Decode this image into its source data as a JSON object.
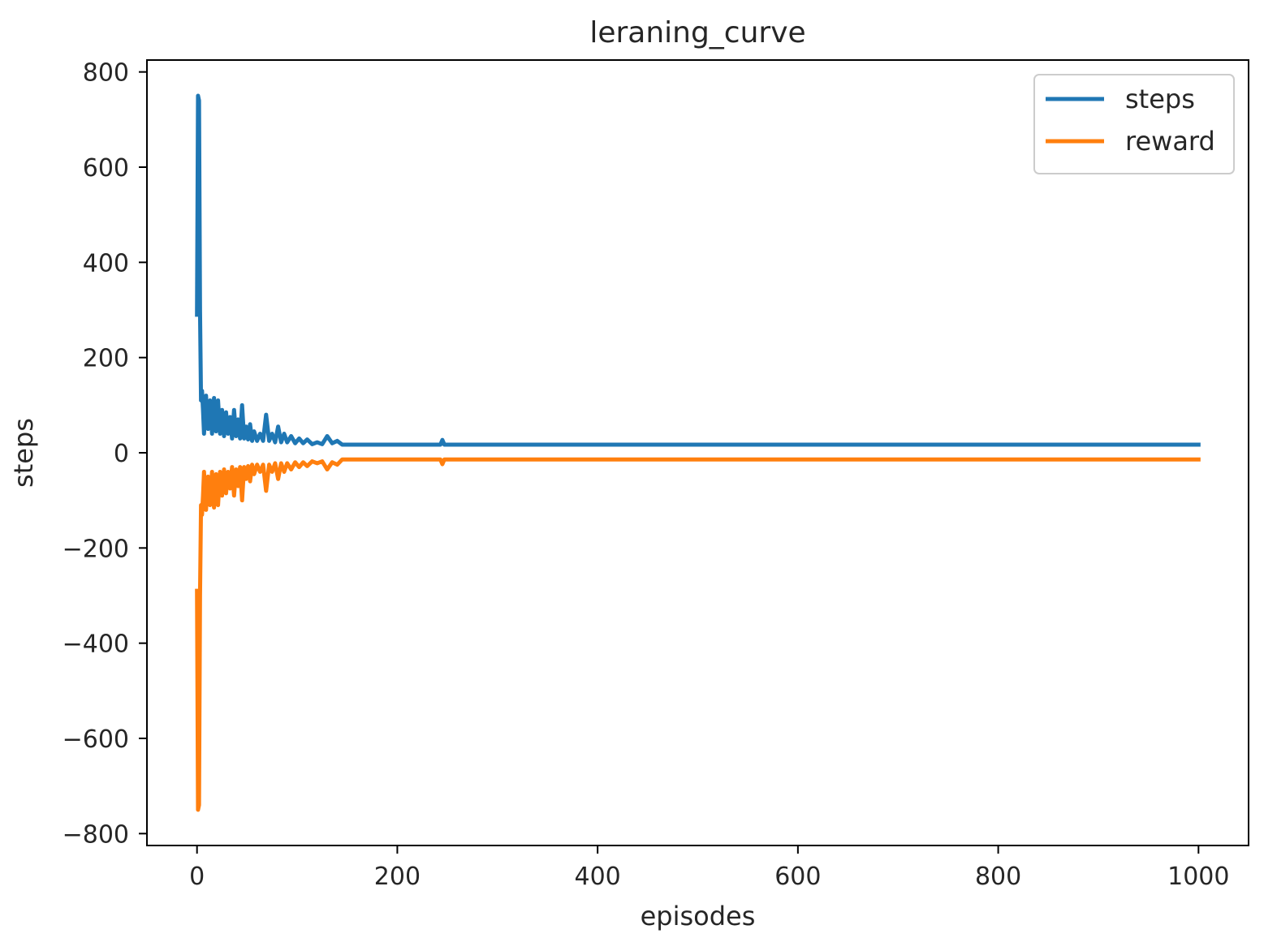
{
  "chart_data": {
    "type": "line",
    "title": "leraning_curve",
    "xlabel": "episodes",
    "ylabel": "steps",
    "xlim": [
      -50,
      1050
    ],
    "ylim": [
      -825,
      825
    ],
    "x_ticks": [
      0,
      200,
      400,
      600,
      800,
      1000
    ],
    "y_ticks": [
      800,
      600,
      400,
      200,
      0,
      -200,
      -400,
      -600,
      -800
    ],
    "x_tick_labels": [
      "0",
      "200",
      "400",
      "600",
      "800",
      "1000"
    ],
    "y_tick_labels": [
      "800",
      "600",
      "400",
      "200",
      "0",
      "−200",
      "−400",
      "−600",
      "−800"
    ],
    "grid": false,
    "legend_position": "top-right",
    "series": [
      {
        "name": "steps",
        "color": "#1f77b4",
        "points": [
          [
            0,
            290
          ],
          [
            1,
            750
          ],
          [
            2,
            740
          ],
          [
            3,
            300
          ],
          [
            4,
            110
          ],
          [
            5,
            130
          ],
          [
            6,
            90
          ],
          [
            7,
            40
          ],
          [
            9,
            120
          ],
          [
            11,
            50
          ],
          [
            13,
            110
          ],
          [
            15,
            40
          ],
          [
            17,
            115
          ],
          [
            19,
            45
          ],
          [
            21,
            110
          ],
          [
            23,
            40
          ],
          [
            25,
            90
          ],
          [
            27,
            35
          ],
          [
            29,
            85
          ],
          [
            31,
            40
          ],
          [
            33,
            75
          ],
          [
            35,
            30
          ],
          [
            37,
            90
          ],
          [
            39,
            35
          ],
          [
            41,
            70
          ],
          [
            43,
            30
          ],
          [
            45,
            100
          ],
          [
            47,
            30
          ],
          [
            49,
            55
          ],
          [
            51,
            28
          ],
          [
            53,
            60
          ],
          [
            55,
            25
          ],
          [
            57,
            45
          ],
          [
            60,
            25
          ],
          [
            63,
            40
          ],
          [
            66,
            25
          ],
          [
            69,
            80
          ],
          [
            72,
            25
          ],
          [
            75,
            40
          ],
          [
            78,
            22
          ],
          [
            81,
            55
          ],
          [
            84,
            22
          ],
          [
            87,
            40
          ],
          [
            90,
            22
          ],
          [
            94,
            35
          ],
          [
            98,
            20
          ],
          [
            102,
            30
          ],
          [
            106,
            20
          ],
          [
            110,
            28
          ],
          [
            115,
            18
          ],
          [
            120,
            22
          ],
          [
            125,
            18
          ],
          [
            130,
            35
          ],
          [
            135,
            20
          ],
          [
            140,
            25
          ],
          [
            145,
            17
          ],
          [
            150,
            17
          ],
          [
            200,
            17
          ],
          [
            243,
            17
          ],
          [
            245,
            27
          ],
          [
            247,
            17
          ],
          [
            300,
            17
          ],
          [
            400,
            17
          ],
          [
            500,
            17
          ],
          [
            600,
            17
          ],
          [
            700,
            17
          ],
          [
            800,
            17
          ],
          [
            900,
            17
          ],
          [
            1000,
            17
          ]
        ]
      },
      {
        "name": "reward",
        "color": "#ff7f0e",
        "points": [
          [
            0,
            -290
          ],
          [
            1,
            -750
          ],
          [
            2,
            -740
          ],
          [
            3,
            -300
          ],
          [
            4,
            -110
          ],
          [
            5,
            -130
          ],
          [
            6,
            -90
          ],
          [
            7,
            -40
          ],
          [
            9,
            -120
          ],
          [
            11,
            -50
          ],
          [
            13,
            -110
          ],
          [
            15,
            -40
          ],
          [
            17,
            -115
          ],
          [
            19,
            -45
          ],
          [
            21,
            -110
          ],
          [
            23,
            -40
          ],
          [
            25,
            -90
          ],
          [
            27,
            -35
          ],
          [
            29,
            -85
          ],
          [
            31,
            -40
          ],
          [
            33,
            -75
          ],
          [
            35,
            -30
          ],
          [
            37,
            -90
          ],
          [
            39,
            -35
          ],
          [
            41,
            -70
          ],
          [
            43,
            -30
          ],
          [
            45,
            -100
          ],
          [
            47,
            -30
          ],
          [
            49,
            -55
          ],
          [
            51,
            -28
          ],
          [
            53,
            -60
          ],
          [
            55,
            -25
          ],
          [
            57,
            -45
          ],
          [
            60,
            -25
          ],
          [
            63,
            -40
          ],
          [
            66,
            -25
          ],
          [
            69,
            -80
          ],
          [
            72,
            -25
          ],
          [
            75,
            -40
          ],
          [
            78,
            -22
          ],
          [
            81,
            -55
          ],
          [
            84,
            -22
          ],
          [
            87,
            -40
          ],
          [
            90,
            -22
          ],
          [
            94,
            -35
          ],
          [
            98,
            -20
          ],
          [
            102,
            -30
          ],
          [
            106,
            -20
          ],
          [
            110,
            -28
          ],
          [
            115,
            -18
          ],
          [
            120,
            -22
          ],
          [
            125,
            -18
          ],
          [
            130,
            -35
          ],
          [
            135,
            -20
          ],
          [
            140,
            -25
          ],
          [
            145,
            -14
          ],
          [
            150,
            -14
          ],
          [
            200,
            -14
          ],
          [
            243,
            -14
          ],
          [
            245,
            -24
          ],
          [
            247,
            -14
          ],
          [
            300,
            -14
          ],
          [
            400,
            -14
          ],
          [
            500,
            -14
          ],
          [
            600,
            -14
          ],
          [
            700,
            -14
          ],
          [
            800,
            -14
          ],
          [
            900,
            -14
          ],
          [
            1000,
            -14
          ]
        ]
      }
    ]
  }
}
